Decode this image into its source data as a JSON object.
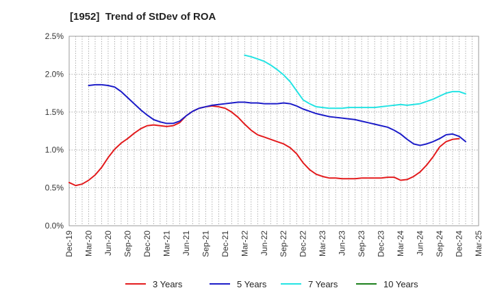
{
  "chart_data": {
    "type": "line",
    "title": "[1952]  Trend of StDev of ROA",
    "xlabel": "",
    "ylabel": "",
    "x_ticks": [
      "Dec-19",
      "Mar-20",
      "Jun-20",
      "Sep-20",
      "Dec-20",
      "Mar-21",
      "Jun-21",
      "Sep-21",
      "Dec-21",
      "Mar-22",
      "Jun-22",
      "Sep-22",
      "Dec-22",
      "Mar-23",
      "Jun-23",
      "Sep-23",
      "Dec-23",
      "Mar-24",
      "Jun-24",
      "Sep-24",
      "Dec-24",
      "Mar-25"
    ],
    "y_ticks": [
      "0.0%",
      "0.5%",
      "1.0%",
      "1.5%",
      "2.0%",
      "2.5%"
    ],
    "ylim": [
      0,
      2.5
    ],
    "grid": true,
    "legend_position": "bottom",
    "series": [
      {
        "name": "3 Years",
        "color": "#e31a1c",
        "points": [
          [
            "Dec-19",
            0.57
          ],
          [
            "Jan-20",
            0.53
          ],
          [
            "Feb-20",
            0.55
          ],
          [
            "Mar-20",
            0.6
          ],
          [
            "Apr-20",
            0.67
          ],
          [
            "May-20",
            0.77
          ],
          [
            "Jun-20",
            0.9
          ],
          [
            "Jul-20",
            1.01
          ],
          [
            "Aug-20",
            1.09
          ],
          [
            "Sep-20",
            1.15
          ],
          [
            "Oct-20",
            1.22
          ],
          [
            "Nov-20",
            1.28
          ],
          [
            "Dec-20",
            1.32
          ],
          [
            "Jan-21",
            1.33
          ],
          [
            "Feb-21",
            1.32
          ],
          [
            "Mar-21",
            1.31
          ],
          [
            "Apr-21",
            1.32
          ],
          [
            "May-21",
            1.36
          ],
          [
            "Jun-21",
            1.45
          ],
          [
            "Jul-21",
            1.51
          ],
          [
            "Aug-21",
            1.55
          ],
          [
            "Sep-21",
            1.57
          ],
          [
            "Oct-21",
            1.58
          ],
          [
            "Nov-21",
            1.57
          ],
          [
            "Dec-21",
            1.55
          ],
          [
            "Jan-22",
            1.5
          ],
          [
            "Feb-22",
            1.43
          ],
          [
            "Mar-22",
            1.34
          ],
          [
            "Apr-22",
            1.26
          ],
          [
            "May-22",
            1.2
          ],
          [
            "Jun-22",
            1.17
          ],
          [
            "Jul-22",
            1.14
          ],
          [
            "Aug-22",
            1.11
          ],
          [
            "Sep-22",
            1.08
          ],
          [
            "Oct-22",
            1.03
          ],
          [
            "Nov-22",
            0.95
          ],
          [
            "Dec-22",
            0.83
          ],
          [
            "Jan-23",
            0.74
          ],
          [
            "Feb-23",
            0.68
          ],
          [
            "Mar-23",
            0.65
          ],
          [
            "Apr-23",
            0.63
          ],
          [
            "May-23",
            0.63
          ],
          [
            "Jun-23",
            0.62
          ],
          [
            "Jul-23",
            0.62
          ],
          [
            "Aug-23",
            0.62
          ],
          [
            "Sep-23",
            0.63
          ],
          [
            "Oct-23",
            0.63
          ],
          [
            "Nov-23",
            0.63
          ],
          [
            "Dec-23",
            0.63
          ],
          [
            "Jan-24",
            0.64
          ],
          [
            "Feb-24",
            0.64
          ],
          [
            "Mar-24",
            0.6
          ],
          [
            "Apr-24",
            0.61
          ],
          [
            "May-24",
            0.65
          ],
          [
            "Jun-24",
            0.71
          ],
          [
            "Jul-24",
            0.8
          ],
          [
            "Aug-24",
            0.91
          ],
          [
            "Sep-24",
            1.04
          ],
          [
            "Oct-24",
            1.11
          ],
          [
            "Nov-24",
            1.14
          ],
          [
            "Dec-24",
            1.15
          ]
        ]
      },
      {
        "name": "5 Years",
        "color": "#1b1bc8",
        "points": [
          [
            "Mar-20",
            1.85
          ],
          [
            "Apr-20",
            1.86
          ],
          [
            "May-20",
            1.86
          ],
          [
            "Jun-20",
            1.85
          ],
          [
            "Jul-20",
            1.83
          ],
          [
            "Aug-20",
            1.77
          ],
          [
            "Sep-20",
            1.69
          ],
          [
            "Oct-20",
            1.61
          ],
          [
            "Nov-20",
            1.53
          ],
          [
            "Dec-20",
            1.46
          ],
          [
            "Jan-21",
            1.4
          ],
          [
            "Feb-21",
            1.37
          ],
          [
            "Mar-21",
            1.35
          ],
          [
            "Apr-21",
            1.35
          ],
          [
            "May-21",
            1.38
          ],
          [
            "Jun-21",
            1.45
          ],
          [
            "Jul-21",
            1.51
          ],
          [
            "Aug-21",
            1.55
          ],
          [
            "Sep-21",
            1.57
          ],
          [
            "Oct-21",
            1.59
          ],
          [
            "Nov-21",
            1.6
          ],
          [
            "Dec-21",
            1.61
          ],
          [
            "Jan-22",
            1.62
          ],
          [
            "Feb-22",
            1.63
          ],
          [
            "Mar-22",
            1.63
          ],
          [
            "Apr-22",
            1.62
          ],
          [
            "May-22",
            1.62
          ],
          [
            "Jun-22",
            1.61
          ],
          [
            "Jul-22",
            1.61
          ],
          [
            "Aug-22",
            1.61
          ],
          [
            "Sep-22",
            1.62
          ],
          [
            "Oct-22",
            1.61
          ],
          [
            "Nov-22",
            1.58
          ],
          [
            "Dec-22",
            1.54
          ],
          [
            "Jan-23",
            1.51
          ],
          [
            "Feb-23",
            1.48
          ],
          [
            "Mar-23",
            1.46
          ],
          [
            "Apr-23",
            1.44
          ],
          [
            "May-23",
            1.43
          ],
          [
            "Jun-23",
            1.42
          ],
          [
            "Jul-23",
            1.41
          ],
          [
            "Aug-23",
            1.4
          ],
          [
            "Sep-23",
            1.38
          ],
          [
            "Oct-23",
            1.36
          ],
          [
            "Nov-23",
            1.34
          ],
          [
            "Dec-23",
            1.32
          ],
          [
            "Jan-24",
            1.3
          ],
          [
            "Feb-24",
            1.26
          ],
          [
            "Mar-24",
            1.21
          ],
          [
            "Apr-24",
            1.14
          ],
          [
            "May-24",
            1.08
          ],
          [
            "Jun-24",
            1.06
          ],
          [
            "Jul-24",
            1.08
          ],
          [
            "Aug-24",
            1.11
          ],
          [
            "Sep-24",
            1.15
          ],
          [
            "Oct-24",
            1.2
          ],
          [
            "Nov-24",
            1.21
          ],
          [
            "Dec-24",
            1.18
          ],
          [
            "Jan-25",
            1.11
          ]
        ]
      },
      {
        "name": "7 Years",
        "color": "#22e3e3",
        "points": [
          [
            "Mar-22",
            2.25
          ],
          [
            "Apr-22",
            2.23
          ],
          [
            "May-22",
            2.2
          ],
          [
            "Jun-22",
            2.17
          ],
          [
            "Jul-22",
            2.12
          ],
          [
            "Aug-22",
            2.06
          ],
          [
            "Sep-22",
            1.99
          ],
          [
            "Oct-22",
            1.9
          ],
          [
            "Nov-22",
            1.78
          ],
          [
            "Dec-22",
            1.66
          ],
          [
            "Jan-23",
            1.61
          ],
          [
            "Feb-23",
            1.57
          ],
          [
            "Mar-23",
            1.56
          ],
          [
            "Apr-23",
            1.55
          ],
          [
            "May-23",
            1.55
          ],
          [
            "Jun-23",
            1.55
          ],
          [
            "Jul-23",
            1.56
          ],
          [
            "Aug-23",
            1.56
          ],
          [
            "Sep-23",
            1.56
          ],
          [
            "Oct-23",
            1.56
          ],
          [
            "Nov-23",
            1.56
          ],
          [
            "Dec-23",
            1.57
          ],
          [
            "Jan-24",
            1.58
          ],
          [
            "Feb-24",
            1.59
          ],
          [
            "Mar-24",
            1.6
          ],
          [
            "Apr-24",
            1.59
          ],
          [
            "May-24",
            1.6
          ],
          [
            "Jun-24",
            1.61
          ],
          [
            "Jul-24",
            1.64
          ],
          [
            "Aug-24",
            1.67
          ],
          [
            "Sep-24",
            1.71
          ],
          [
            "Oct-24",
            1.75
          ],
          [
            "Nov-24",
            1.77
          ],
          [
            "Dec-24",
            1.77
          ],
          [
            "Jan-25",
            1.74
          ]
        ]
      },
      {
        "name": "10 Years",
        "color": "#1a7f1a",
        "points": []
      }
    ]
  }
}
